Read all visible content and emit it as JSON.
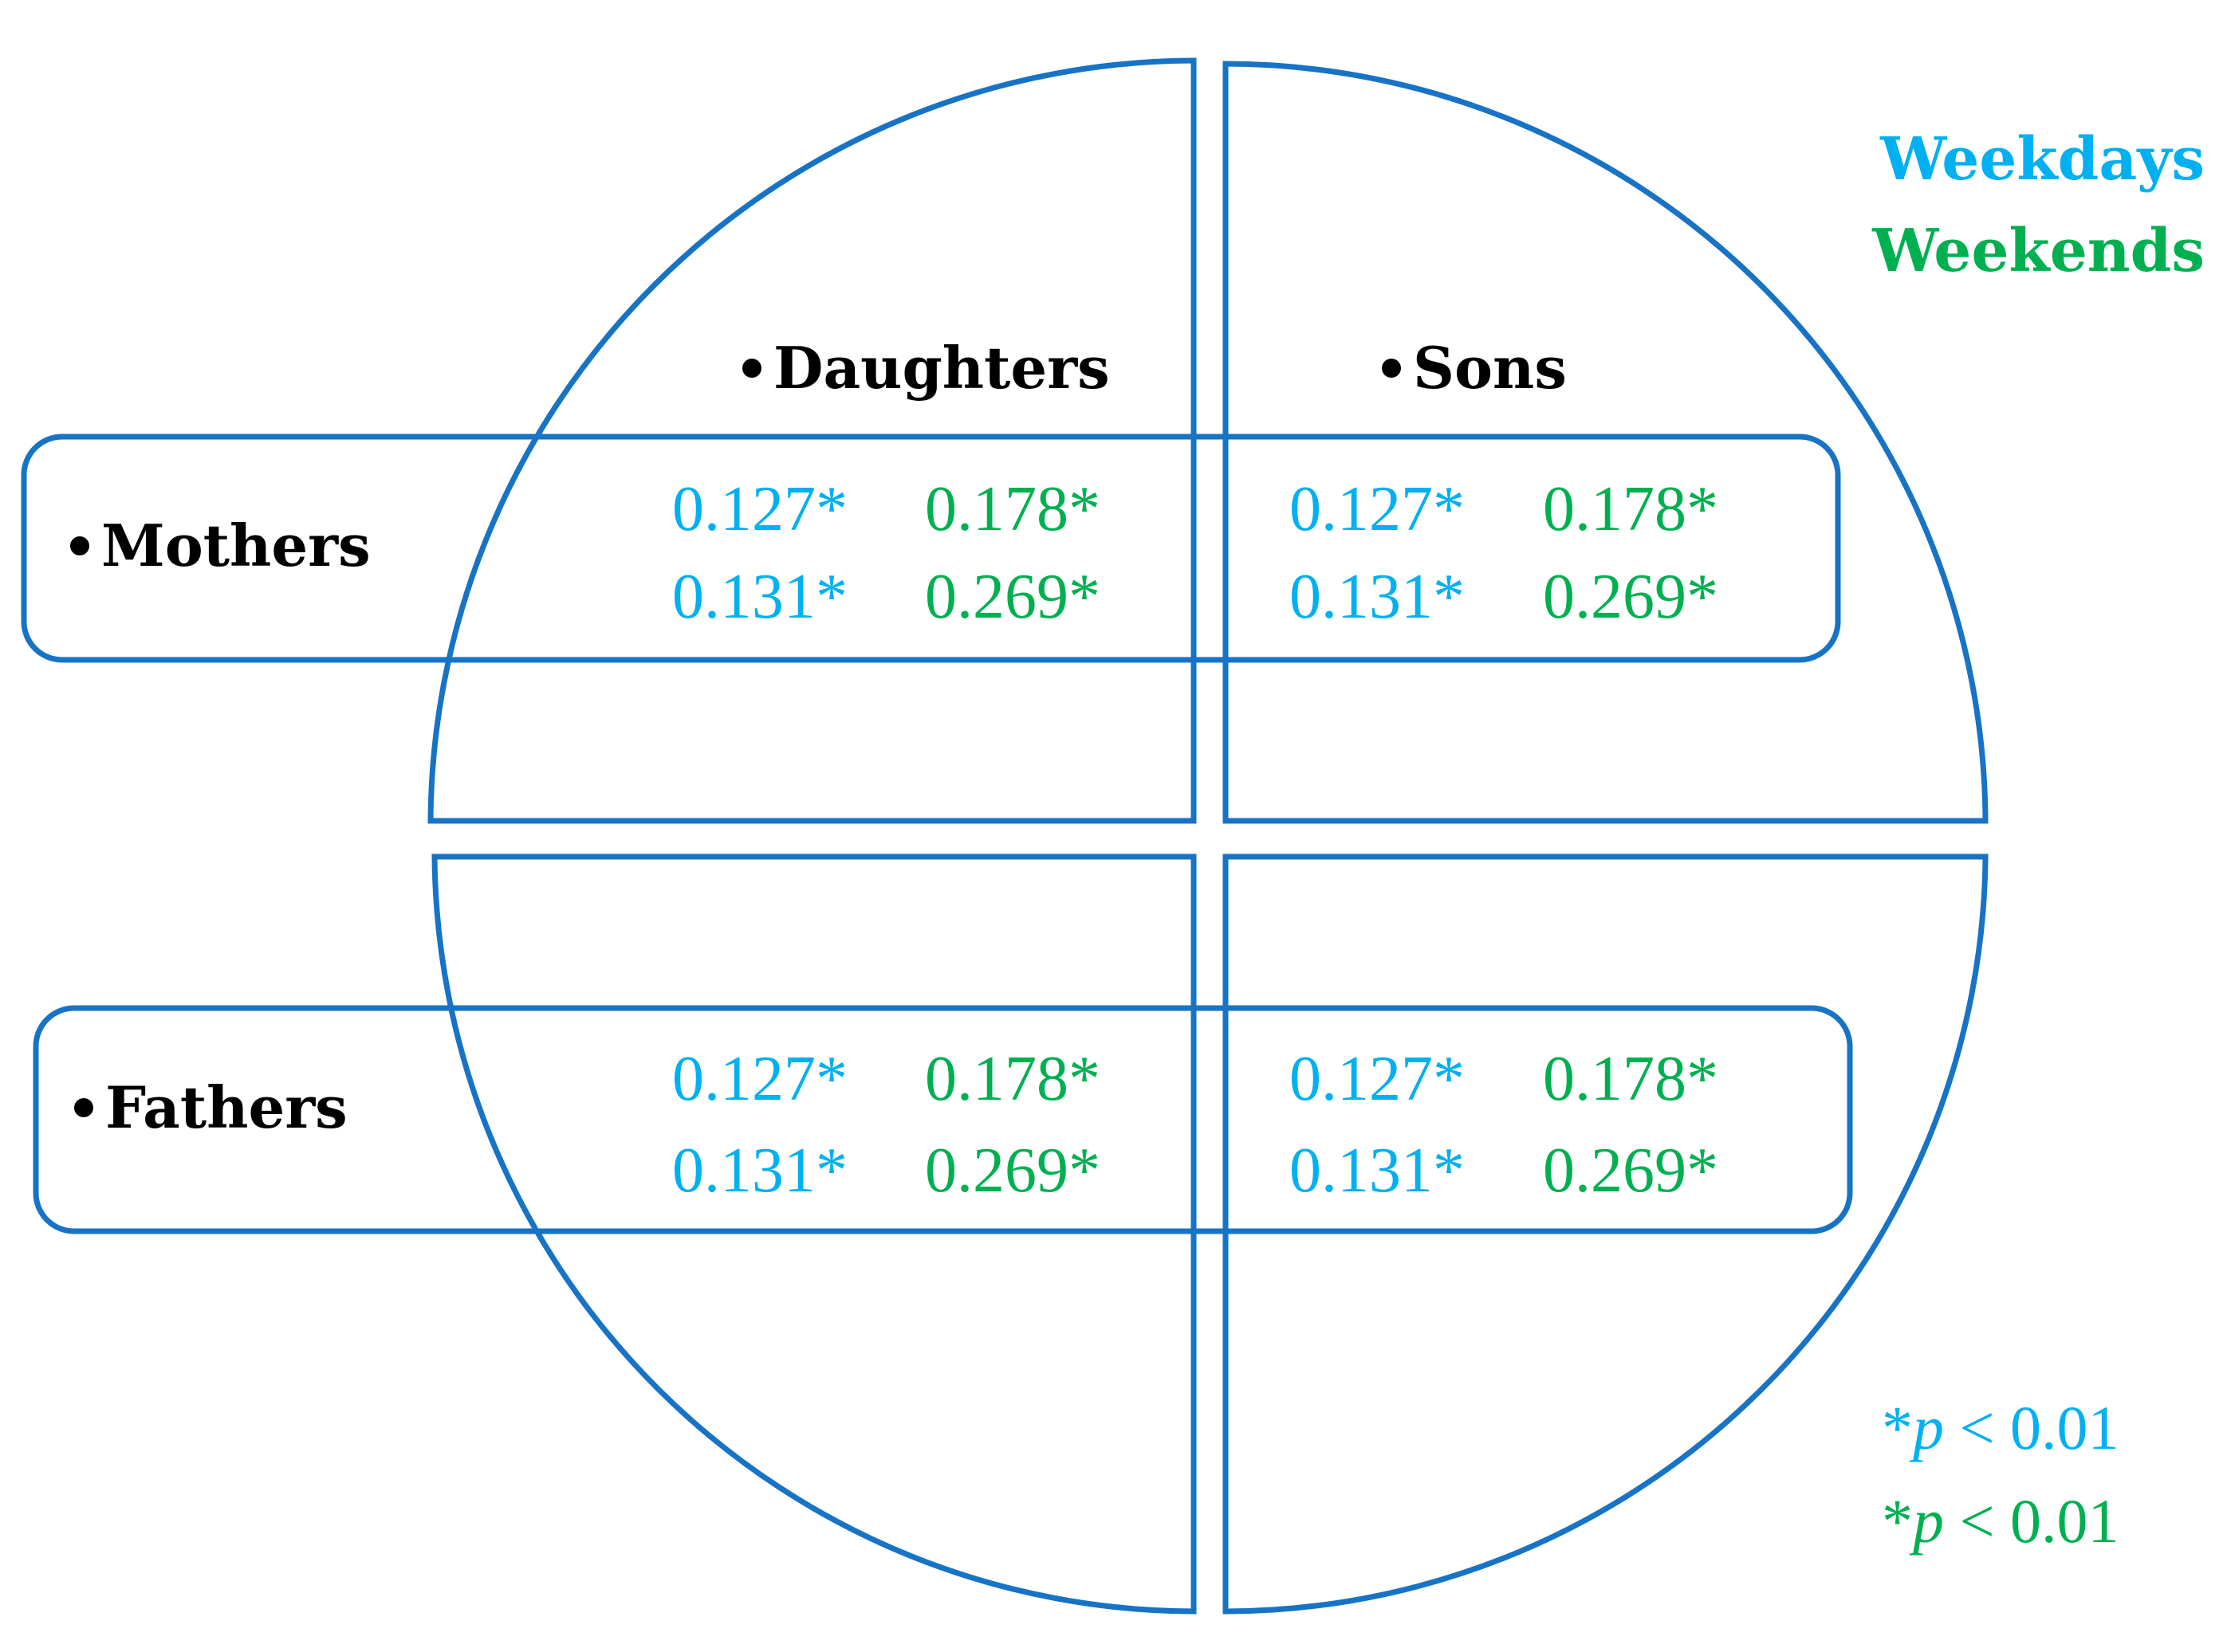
{
  "colors": {
    "outline": "#1773C5",
    "weekdays": "#00B0F0",
    "weekends": "#00B050",
    "label": "#000000"
  },
  "legend": {
    "weekdays": "Weekdays",
    "weekends": "Weekends"
  },
  "columns": {
    "daughters": "Daughters",
    "sons": "Sons"
  },
  "rows": {
    "mothers": "Mothers",
    "fathers": "Fathers"
  },
  "cells": {
    "mothers_daughters": {
      "weekdays": [
        "0.127*",
        "0.131*"
      ],
      "weekends": [
        "0.178*",
        "0.269*"
      ]
    },
    "mothers_sons": {
      "weekdays": [
        "0.127*",
        "0.131*"
      ],
      "weekends": [
        "0.178*",
        "0.269*"
      ]
    },
    "fathers_daughters": {
      "weekdays": [
        "0.127*",
        "0.131*"
      ],
      "weekends": [
        "0.178*",
        "0.269*"
      ]
    },
    "fathers_sons": {
      "weekdays": [
        "0.127*",
        "0.131*"
      ],
      "weekends": [
        "0.178*",
        "0.269*"
      ]
    }
  },
  "significance": {
    "weekdays": {
      "star": "*",
      "p": "p",
      "rest": " < 0.01"
    },
    "weekends": {
      "star": "*",
      "p": "p",
      "rest": " < 0.01"
    }
  }
}
